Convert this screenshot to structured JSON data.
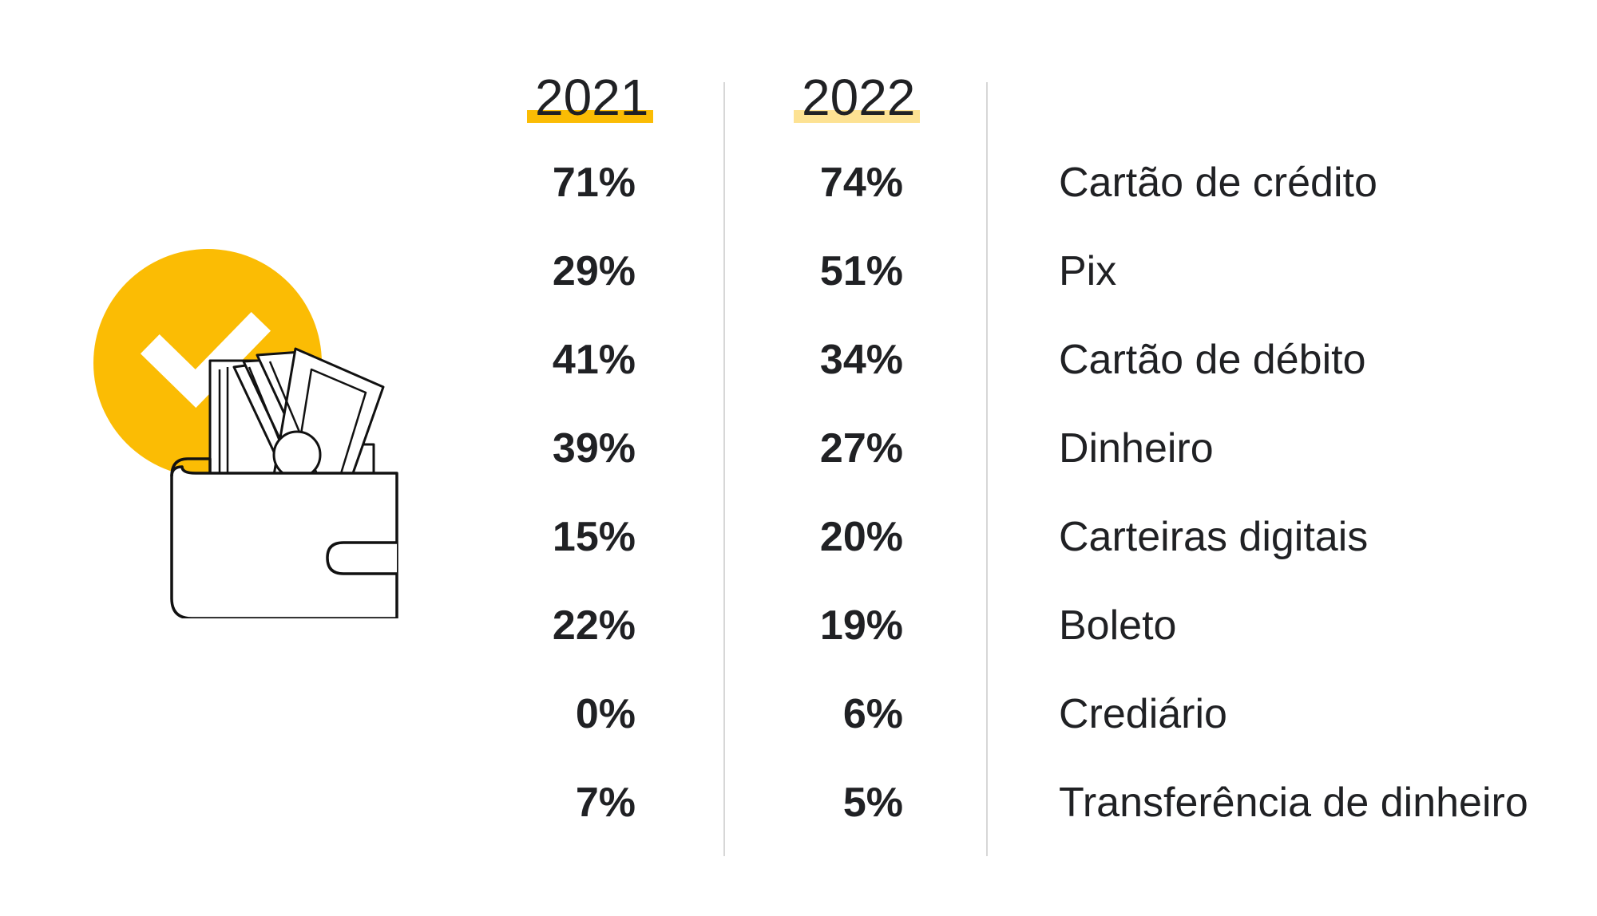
{
  "colors": {
    "accent_2021": "#FBBC04",
    "accent_2022": "#FDE293",
    "circle": "#FBBC04",
    "text": "#202124",
    "divider": "#D7D7D7"
  },
  "icons": [
    "wallet-icon",
    "check-icon",
    "banknotes-icon",
    "coin-icon"
  ],
  "chart_data": {
    "type": "table",
    "columns": [
      "2021",
      "2022",
      ""
    ],
    "series": [
      {
        "name": "2021",
        "values": [
          71,
          29,
          41,
          39,
          15,
          22,
          0,
          7
        ]
      },
      {
        "name": "2022",
        "values": [
          74,
          51,
          34,
          27,
          20,
          19,
          6,
          5
        ]
      }
    ],
    "categories": [
      "Cartão de crédito",
      "Pix",
      "Cartão de débito",
      "Dinheiro",
      "Carteiras digitais",
      "Boleto",
      "Crediário",
      "Transferência de dinheiro"
    ],
    "rows": [
      {
        "method": "Cartão de crédito",
        "y2021": "71%",
        "y2022": "74%"
      },
      {
        "method": "Pix",
        "y2021": "29%",
        "y2022": "51%"
      },
      {
        "method": "Cartão de débito",
        "y2021": "41%",
        "y2022": "34%"
      },
      {
        "method": "Dinheiro",
        "y2021": "39%",
        "y2022": "27%"
      },
      {
        "method": "Carteiras digitais",
        "y2021": "15%",
        "y2022": "20%"
      },
      {
        "method": "Boleto",
        "y2021": "22%",
        "y2022": "19%"
      },
      {
        "method": "Crediário",
        "y2021": "0%",
        "y2022": "6%"
      },
      {
        "method": "Transferência de dinheiro",
        "y2021": "7%",
        "y2022": "5%"
      }
    ],
    "unit": "%"
  }
}
